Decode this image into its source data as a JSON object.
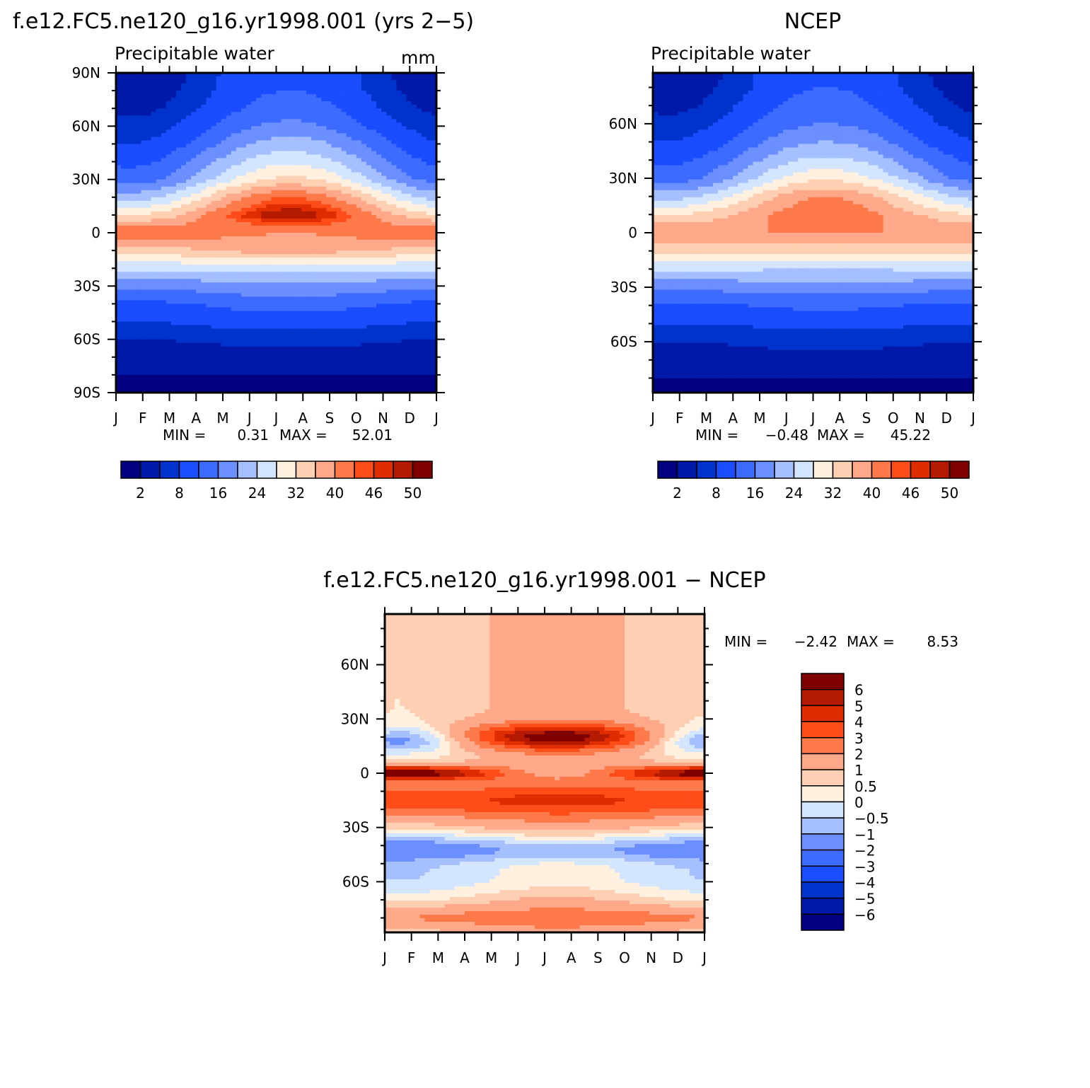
{
  "chart_data": [
    {
      "type": "heatmap",
      "title": "f.e12.FC5.ne120_g16.yr1998.001 (yrs 2−5)",
      "subtitle": "Precipitable water",
      "units": "mm",
      "x_tick_labels": [
        "J",
        "F",
        "M",
        "A",
        "M",
        "J",
        "J",
        "A",
        "S",
        "O",
        "N",
        "D",
        "J"
      ],
      "y_tick_labels": [
        "90N",
        "60N",
        "30N",
        "0",
        "30S",
        "60S",
        "90S"
      ],
      "y_tick_values": [
        90,
        60,
        30,
        0,
        -30,
        -60,
        -90
      ],
      "ylim": [
        -90,
        90
      ],
      "min_label": "MIN =",
      "min_value": "0.31",
      "max_label": "MAX =",
      "max_value": "52.01",
      "levels": [
        0,
        2,
        5,
        8,
        12,
        16,
        20,
        24,
        28,
        32,
        36,
        40,
        44,
        46,
        48,
        50,
        52
      ],
      "colorbar_labels": [
        "2",
        "8",
        "16",
        "24",
        "32",
        "40",
        "46",
        "50"
      ],
      "colorbar_label_levels": [
        2,
        8,
        16,
        24,
        32,
        40,
        46,
        50
      ],
      "profile": {
        "lat": [
          -90,
          -80,
          -70,
          -60,
          -50,
          -40,
          -30,
          -20,
          -10,
          0,
          10,
          20,
          30,
          40,
          50,
          60,
          70,
          80,
          90
        ],
        "winter": [
          1,
          2,
          3,
          5,
          8,
          11,
          17,
          25,
          34,
          44,
          32,
          22,
          14,
          11,
          8,
          6,
          4,
          3,
          2
        ],
        "summer": [
          1,
          2,
          4,
          6,
          10,
          14,
          19,
          25,
          38,
          40,
          50,
          44,
          33,
          27,
          22,
          17,
          14,
          12,
          12
        ]
      }
    },
    {
      "type": "heatmap",
      "title": "NCEP",
      "subtitle": "Precipitable water",
      "x_tick_labels": [
        "J",
        "F",
        "M",
        "A",
        "M",
        "J",
        "J",
        "A",
        "S",
        "O",
        "N",
        "D",
        "J"
      ],
      "y_tick_labels": [
        "60N",
        "30N",
        "0",
        "30S",
        "60S"
      ],
      "y_tick_values": [
        60,
        30,
        0,
        -30,
        -60
      ],
      "ylim": [
        -88,
        88
      ],
      "min_label": "MIN =",
      "min_value": "−0.48",
      "max_label": "MAX =",
      "max_value": "45.22",
      "levels": [
        0,
        2,
        5,
        8,
        12,
        16,
        20,
        24,
        28,
        32,
        36,
        40,
        44,
        46,
        48,
        50,
        52
      ],
      "colorbar_labels": [
        "2",
        "8",
        "16",
        "24",
        "32",
        "40",
        "46",
        "50"
      ],
      "colorbar_label_levels": [
        2,
        8,
        16,
        24,
        32,
        40,
        46,
        50
      ],
      "profile": {
        "lat": [
          -90,
          -80,
          -70,
          -60,
          -50,
          -40,
          -30,
          -20,
          -10,
          0,
          10,
          20,
          30,
          40,
          50,
          60,
          70,
          80,
          90
        ],
        "winter": [
          1,
          2,
          3,
          5,
          8,
          11,
          17,
          25,
          33,
          40,
          32,
          22,
          14,
          11,
          8,
          6,
          4,
          3,
          2
        ],
        "summer": [
          1,
          2,
          4,
          6,
          9,
          13,
          18,
          24,
          34,
          40,
          43,
          40,
          31,
          25,
          20,
          16,
          14,
          12,
          12
        ]
      }
    },
    {
      "type": "heatmap",
      "title": "f.e12.FC5.ne120_g16.yr1998.001 − NCEP",
      "x_tick_labels": [
        "J",
        "F",
        "M",
        "A",
        "M",
        "J",
        "J",
        "A",
        "S",
        "O",
        "N",
        "D",
        "J"
      ],
      "y_tick_labels": [
        "60N",
        "30N",
        "0",
        "30S",
        "60S"
      ],
      "y_tick_values": [
        60,
        30,
        0,
        -30,
        -60
      ],
      "ylim": [
        -88,
        88
      ],
      "min_label": "MIN =",
      "min_value": "−2.42",
      "max_label": "MAX =",
      "max_value": "8.53",
      "levels": [
        -7,
        -6,
        -5,
        -4,
        -3,
        -2,
        -1,
        -0.5,
        0,
        0.5,
        1,
        2,
        3,
        4,
        5,
        6,
        7
      ],
      "colorbar_labels": [
        "6",
        "5",
        "4",
        "3",
        "2",
        "1",
        "0.5",
        "0",
        "−0.5",
        "−1",
        "−2",
        "−3",
        "−4",
        "−5",
        "−6"
      ]
    }
  ],
  "palette": [
    "#000080",
    "#0019a8",
    "#0033cc",
    "#1a4dff",
    "#3d6bff",
    "#6b8fff",
    "#a5bfff",
    "#d4e6ff",
    "#fff0df",
    "#ffcfb3",
    "#ffa98a",
    "#ff7a4a",
    "#ff4d1a",
    "#e02d00",
    "#b31a00",
    "#800000"
  ]
}
